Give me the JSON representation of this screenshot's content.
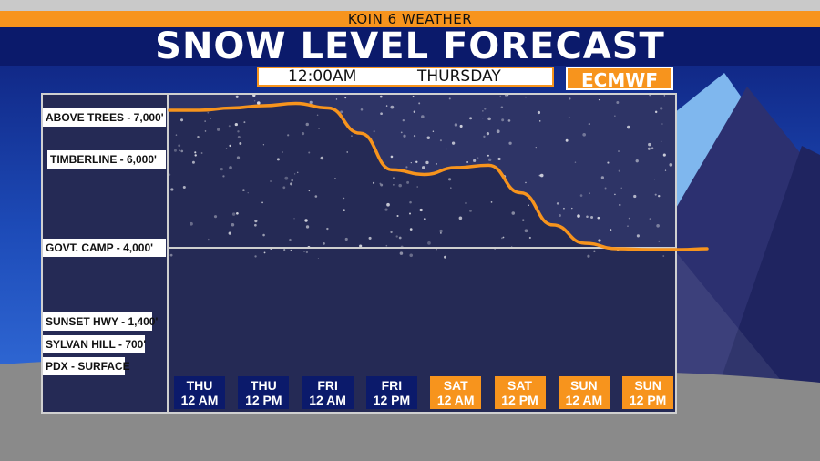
{
  "header": {
    "station": "KOIN 6 WEATHER",
    "title": "SNOW LEVEL FORECAST",
    "time": "12:00AM",
    "day": "THURSDAY",
    "model": "ECMWF"
  },
  "colors": {
    "accent": "#f7941d",
    "navy": "#0b1a6b",
    "panel": "#252a55",
    "line": "#f7941d"
  },
  "chart_data": {
    "type": "line",
    "title": "SNOW LEVEL FORECAST",
    "xlabel": "",
    "ylabel": "",
    "categories": [
      "THU 12 AM",
      "THU 12 PM",
      "FRI 12 AM",
      "FRI 12 PM",
      "SAT 12 AM",
      "SAT 12 PM",
      "SUN 12 AM",
      "SUN 12 PM"
    ],
    "x_labels": [
      {
        "top": "THU",
        "bottom": "12 AM",
        "highlight": false
      },
      {
        "top": "THU",
        "bottom": "12 PM",
        "highlight": false
      },
      {
        "top": "FRI",
        "bottom": "12 AM",
        "highlight": false
      },
      {
        "top": "FRI",
        "bottom": "12 PM",
        "highlight": false
      },
      {
        "top": "SAT",
        "bottom": "12 AM",
        "highlight": true
      },
      {
        "top": "SAT",
        "bottom": "12 PM",
        "highlight": true
      },
      {
        "top": "SUN",
        "bottom": "12 AM",
        "highlight": true
      },
      {
        "top": "SUN",
        "bottom": "12 PM",
        "highlight": true
      }
    ],
    "reference_levels": [
      {
        "label": "ABOVE TREES - 7,000'",
        "value": 7000
      },
      {
        "label": "TIMBERLINE - 6,000'",
        "value": 6000
      },
      {
        "label": "GOVT. CAMP - 4,000'",
        "value": 4000
      },
      {
        "label": "SUNSET HWY - 1,400'",
        "value": 1400
      },
      {
        "label": "SYLVAN HILL - 700'",
        "value": 700
      },
      {
        "label": "PDX - SURFACE",
        "value": 0
      }
    ],
    "series": [
      {
        "x": [
          0,
          0.5,
          1,
          1.5,
          2,
          2.5,
          3,
          3.5,
          4,
          4.5,
          5,
          5.5,
          6,
          6.5,
          7,
          7.5,
          7.9
        ],
        "values": [
          7000,
          7050,
          7100,
          7150,
          7050,
          6500,
          5700,
          5600,
          5750,
          5800,
          5200,
          4500,
          4100,
          3980,
          3960,
          3960,
          3980
        ]
      }
    ],
    "ylim": [
      -500,
      7450
    ],
    "grid": false
  }
}
